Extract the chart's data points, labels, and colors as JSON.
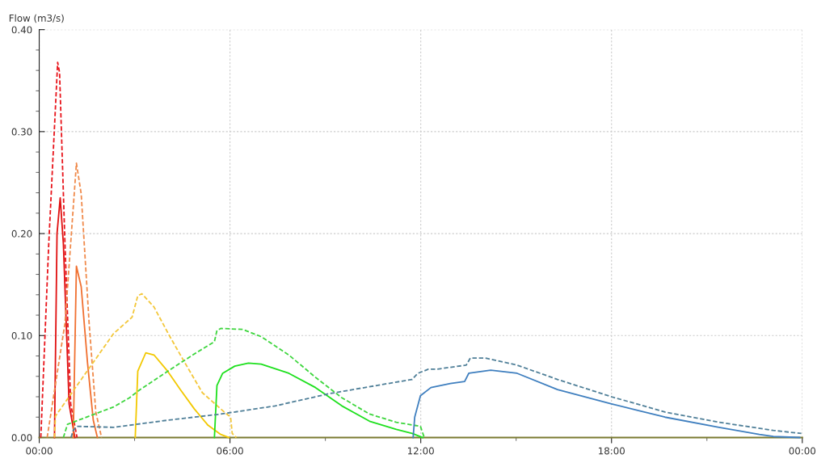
{
  "chart_data": {
    "type": "line",
    "ylabel": "Flow (m3/s)",
    "grid": true,
    "legend": false,
    "marker": "none",
    "xlim": [
      0,
      24
    ],
    "ylim": [
      0,
      0.4
    ],
    "xticks": [
      {
        "value": 0,
        "label": "00:00"
      },
      {
        "value": 3,
        "label": null
      },
      {
        "value": 6,
        "label": "06:00"
      },
      {
        "value": 9,
        "label": null
      },
      {
        "value": 12,
        "label": "12:00"
      },
      {
        "value": 15,
        "label": null
      },
      {
        "value": 18,
        "label": "18:00"
      },
      {
        "value": 21,
        "label": null
      },
      {
        "value": 24,
        "label": "00:00"
      }
    ],
    "yticks": [
      {
        "value": 0,
        "label": "0.00"
      },
      {
        "value": 0.02,
        "label": null
      },
      {
        "value": 0.04,
        "label": null
      },
      {
        "value": 0.06,
        "label": null
      },
      {
        "value": 0.08,
        "label": null
      },
      {
        "value": 0.1,
        "label": "0.10"
      },
      {
        "value": 0.12,
        "label": null
      },
      {
        "value": 0.14,
        "label": null
      },
      {
        "value": 0.16,
        "label": null
      },
      {
        "value": 0.18,
        "label": null
      },
      {
        "value": 0.2,
        "label": "0.20"
      },
      {
        "value": 0.22,
        "label": null
      },
      {
        "value": 0.24,
        "label": null
      },
      {
        "value": 0.26,
        "label": null
      },
      {
        "value": 0.28,
        "label": null
      },
      {
        "value": 0.3,
        "label": "0.30"
      },
      {
        "value": 0.32,
        "label": null
      },
      {
        "value": 0.34,
        "label": null
      },
      {
        "value": 0.36,
        "label": null
      },
      {
        "value": 0.38,
        "label": null
      },
      {
        "value": 0.4,
        "label": "0.40"
      }
    ],
    "series": [
      {
        "color": "#e8141b",
        "line_style": "dashed",
        "x": [
          0.05,
          0.3,
          0.58,
          0.64,
          0.81,
          0.99,
          1.19
        ],
        "values": [
          0,
          0.19,
          0.368,
          0.358,
          0.19,
          0.033,
          0
        ]
      },
      {
        "color": "#e01010",
        "line_style": "solid",
        "x": [
          0.48,
          0.56,
          0.66,
          0.76,
          0.94,
          1.12
        ],
        "values": [
          0,
          0.2,
          0.235,
          0.19,
          0.033,
          0
        ]
      },
      {
        "color": "#f08a4b",
        "line_style": "dashed",
        "x": [
          0.25,
          0.81,
          1.17,
          1.32,
          1.57,
          1.78,
          1.96
        ],
        "values": [
          0,
          0.112,
          0.269,
          0.239,
          0.112,
          0.025,
          0
        ]
      },
      {
        "color": "#f07030",
        "line_style": "solid",
        "x": [
          1.07,
          1.17,
          1.32,
          1.52,
          1.7,
          1.83
        ],
        "values": [
          0,
          0.168,
          0.148,
          0.073,
          0.017,
          0
        ]
      },
      {
        "color": "#f3c73a",
        "line_style": "dashed",
        "x": [
          0.48,
          0.51,
          2.34,
          2.92,
          3.1,
          3.23,
          3.61,
          4.11,
          4.55,
          5.13,
          5.82,
          6.02,
          6.07,
          6.2
        ],
        "values": [
          0,
          0.021,
          0.102,
          0.118,
          0.139,
          0.141,
          0.128,
          0.099,
          0.075,
          0.044,
          0.025,
          0.02,
          0.004,
          0
        ]
      },
      {
        "color": "#f2c800",
        "line_style": "solid",
        "x": [
          3.02,
          3.1,
          3.35,
          3.61,
          4.04,
          4.44,
          4.88,
          5.31,
          5.71,
          5.97
        ],
        "values": [
          0,
          0.065,
          0.083,
          0.081,
          0.065,
          0.047,
          0.028,
          0.012,
          0.003,
          0
        ]
      },
      {
        "color": "#3ed63e",
        "line_style": "dashed",
        "x": [
          0.76,
          0.89,
          2.34,
          2.84,
          3.17,
          4.04,
          4.88,
          5.51,
          5.59,
          5.71,
          6.4,
          6.98,
          7.85,
          8.69,
          9.52,
          10.39,
          11.23,
          11.99,
          12.11
        ],
        "values": [
          0,
          0.013,
          0.03,
          0.039,
          0.047,
          0.065,
          0.082,
          0.094,
          0.105,
          0.107,
          0.106,
          0.099,
          0.081,
          0.059,
          0.039,
          0.023,
          0.015,
          0.011,
          0
        ]
      },
      {
        "color": "#1ee01e",
        "line_style": "solid",
        "x": [
          5.51,
          5.59,
          5.77,
          6.15,
          6.58,
          6.98,
          7.85,
          8.69,
          9.52,
          10.39,
          11.23,
          11.73,
          12.06
        ],
        "values": [
          0,
          0.051,
          0.063,
          0.07,
          0.073,
          0.072,
          0.063,
          0.049,
          0.031,
          0.016,
          0.008,
          0.004,
          0
        ]
      },
      {
        "color": "#4f7f98",
        "line_style": "dashed",
        "x": [
          1.0,
          1.07,
          1.19,
          2.34,
          4.04,
          5.71,
          7.42,
          9.12,
          10.79,
          11.73,
          11.91,
          12.24,
          12.5,
          13.43,
          13.56,
          14.02,
          15.03,
          16.3,
          18.0,
          19.68,
          21.38,
          23.09,
          23.97
        ],
        "values": [
          0,
          0.007,
          0.011,
          0.01,
          0.017,
          0.023,
          0.031,
          0.043,
          0.052,
          0.057,
          0.063,
          0.067,
          0.067,
          0.071,
          0.078,
          0.078,
          0.071,
          0.057,
          0.04,
          0.025,
          0.015,
          0.007,
          0.004
        ]
      },
      {
        "color": "#3f7fbf",
        "line_style": "solid",
        "x": [
          11.76,
          11.81,
          11.99,
          12.32,
          12.93,
          13.38,
          13.51,
          14.2,
          15.03,
          16.3,
          18.0,
          19.68,
          21.38,
          22.65,
          23.09,
          23.92
        ],
        "values": [
          0,
          0.02,
          0.041,
          0.049,
          0.053,
          0.055,
          0.063,
          0.066,
          0.063,
          0.047,
          0.033,
          0.02,
          0.01,
          0.003,
          0.001,
          0
        ]
      }
    ]
  }
}
